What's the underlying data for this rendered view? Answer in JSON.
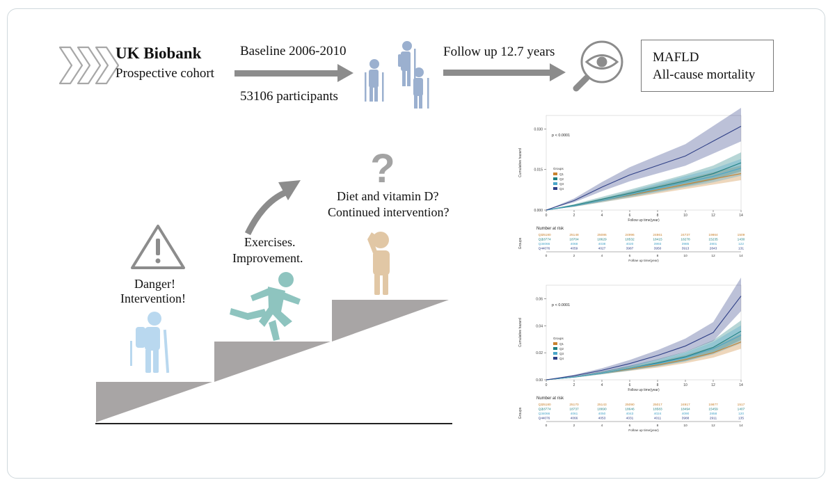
{
  "header": {
    "title": "UK Biobank",
    "subtitle": "Prospective cohort",
    "baseline": "Baseline 2006-2010",
    "participants": "53106 participants",
    "follow_up": "Follow up 12.7 years",
    "outcome_line1": "MAFLD",
    "outcome_line2": "All-cause mortality"
  },
  "steps": {
    "danger_line1": "Danger!",
    "danger_line2": "Intervention!",
    "exercise_line1": "Exercises.",
    "exercise_line2": "Improvement.",
    "diet_line1": "Diet and vitamin D?",
    "diet_line2": "Continued intervention?"
  },
  "icons": [
    "chevron-arrows-icon",
    "hikers-group-icon",
    "eye-magnifier-icon",
    "warning-icon",
    "curved-arrow-icon",
    "question-mark-icon",
    "hiker-icon",
    "runner-icon",
    "thinking-person-icon"
  ],
  "colors": {
    "Q1": "#c9822f",
    "Q2": "#1f7f80",
    "Q3": "#4aa6c9",
    "Q4": "#2e3f86",
    "steps": "#a8a5a5",
    "arrow": "#8c8c8c"
  },
  "chart_data": [
    {
      "type": "line",
      "title": "",
      "annotation": "p < 0.0001",
      "xlabel": "Follow up time(year)",
      "ylabel": "Cumulative hazard",
      "xlim": [
        0,
        14
      ],
      "ylim": [
        0,
        0.035
      ],
      "xticks": [
        "0",
        "2",
        "4",
        "6",
        "8",
        "10",
        "12",
        "14"
      ],
      "yticks": [
        "0.000",
        "0.015",
        "0.030"
      ],
      "legend_title": "Groups",
      "legend_position": "left",
      "series": [
        {
          "name": "Q1",
          "x": [
            0,
            2,
            4,
            6,
            8,
            10,
            12,
            14
          ],
          "values": [
            0,
            0.0015,
            0.0035,
            0.0055,
            0.0075,
            0.0095,
            0.0115,
            0.0135
          ]
        },
        {
          "name": "Q2",
          "x": [
            0,
            2,
            4,
            6,
            8,
            10,
            12,
            14
          ],
          "values": [
            0,
            0.0018,
            0.004,
            0.0062,
            0.0085,
            0.0108,
            0.0135,
            0.0175
          ]
        },
        {
          "name": "Q3",
          "x": [
            0,
            2,
            4,
            6,
            8,
            10,
            12,
            14
          ],
          "values": [
            0,
            0.0015,
            0.0035,
            0.0057,
            0.008,
            0.0103,
            0.0125,
            0.0155
          ]
        },
        {
          "name": "Q4",
          "x": [
            0,
            2,
            4,
            6,
            8,
            10,
            12,
            14
          ],
          "values": [
            0,
            0.0035,
            0.0085,
            0.013,
            0.0165,
            0.02,
            0.0255,
            0.031
          ]
        }
      ],
      "risk_table": {
        "title": "Number at risk",
        "ylabel": "Groups",
        "groups": [
          "Q1",
          "Q2",
          "Q3",
          "Q4"
        ],
        "rows": [
          [
            "25180",
            "25148",
            "25086",
            "24996",
            "24861",
            "24737",
            "19864",
            "1509"
          ],
          [
            "18774",
            "18704",
            "18629",
            "18532",
            "18415",
            "18278",
            "15235",
            "1430"
          ],
          [
            "4066",
            "4068",
            "4038",
            "4020",
            "3993",
            "3985",
            "2801",
            "122"
          ],
          [
            "4076",
            "4059",
            "4027",
            "3987",
            "3950",
            "3913",
            "2843",
            "131"
          ]
        ],
        "xlabel": "Follow up time(year)"
      }
    },
    {
      "type": "line",
      "title": "",
      "annotation": "p < 0.0001",
      "xlabel": "Follow up time(year)",
      "ylabel": "Cumulative hazard",
      "xlim": [
        0,
        14
      ],
      "ylim": [
        0,
        0.07
      ],
      "xticks": [
        "0",
        "2",
        "4",
        "6",
        "8",
        "10",
        "12",
        "14"
      ],
      "yticks": [
        "0.00",
        "0.02",
        "0.04",
        "0.06"
      ],
      "legend_title": "Groups",
      "legend_position": "left",
      "series": [
        {
          "name": "Q1",
          "x": [
            0,
            2,
            4,
            6,
            8,
            10,
            12,
            14
          ],
          "values": [
            0,
            0.002,
            0.005,
            0.008,
            0.011,
            0.015,
            0.02,
            0.028
          ]
        },
        {
          "name": "Q2",
          "x": [
            0,
            2,
            4,
            6,
            8,
            10,
            12,
            14
          ],
          "values": [
            0,
            0.002,
            0.005,
            0.0085,
            0.0125,
            0.017,
            0.024,
            0.036
          ]
        },
        {
          "name": "Q3",
          "x": [
            0,
            2,
            4,
            6,
            8,
            10,
            12,
            14
          ],
          "values": [
            0,
            0.002,
            0.005,
            0.0085,
            0.012,
            0.0165,
            0.023,
            0.033
          ]
        },
        {
          "name": "Q4",
          "x": [
            0,
            2,
            4,
            6,
            8,
            10,
            12,
            14
          ],
          "values": [
            0,
            0.003,
            0.007,
            0.012,
            0.018,
            0.025,
            0.035,
            0.062
          ]
        }
      ],
      "risk_table": {
        "title": "Number at risk",
        "ylabel": "Groups",
        "groups": [
          "Q1",
          "Q2",
          "Q3",
          "Q4"
        ],
        "rows": [
          [
            "25180",
            "25170",
            "25143",
            "25090",
            "25017",
            "24917",
            "19877",
            "1517"
          ],
          [
            "18774",
            "18737",
            "18690",
            "18646",
            "18583",
            "18494",
            "15459",
            "1407"
          ],
          [
            "4066",
            "4061",
            "4050",
            "4043",
            "4024",
            "4090",
            "2858",
            "120"
          ],
          [
            "4076",
            "4066",
            "4053",
            "4031",
            "4011",
            "3988",
            "2911",
            "135"
          ]
        ],
        "xlabel": "Follow up time(year)"
      }
    }
  ]
}
